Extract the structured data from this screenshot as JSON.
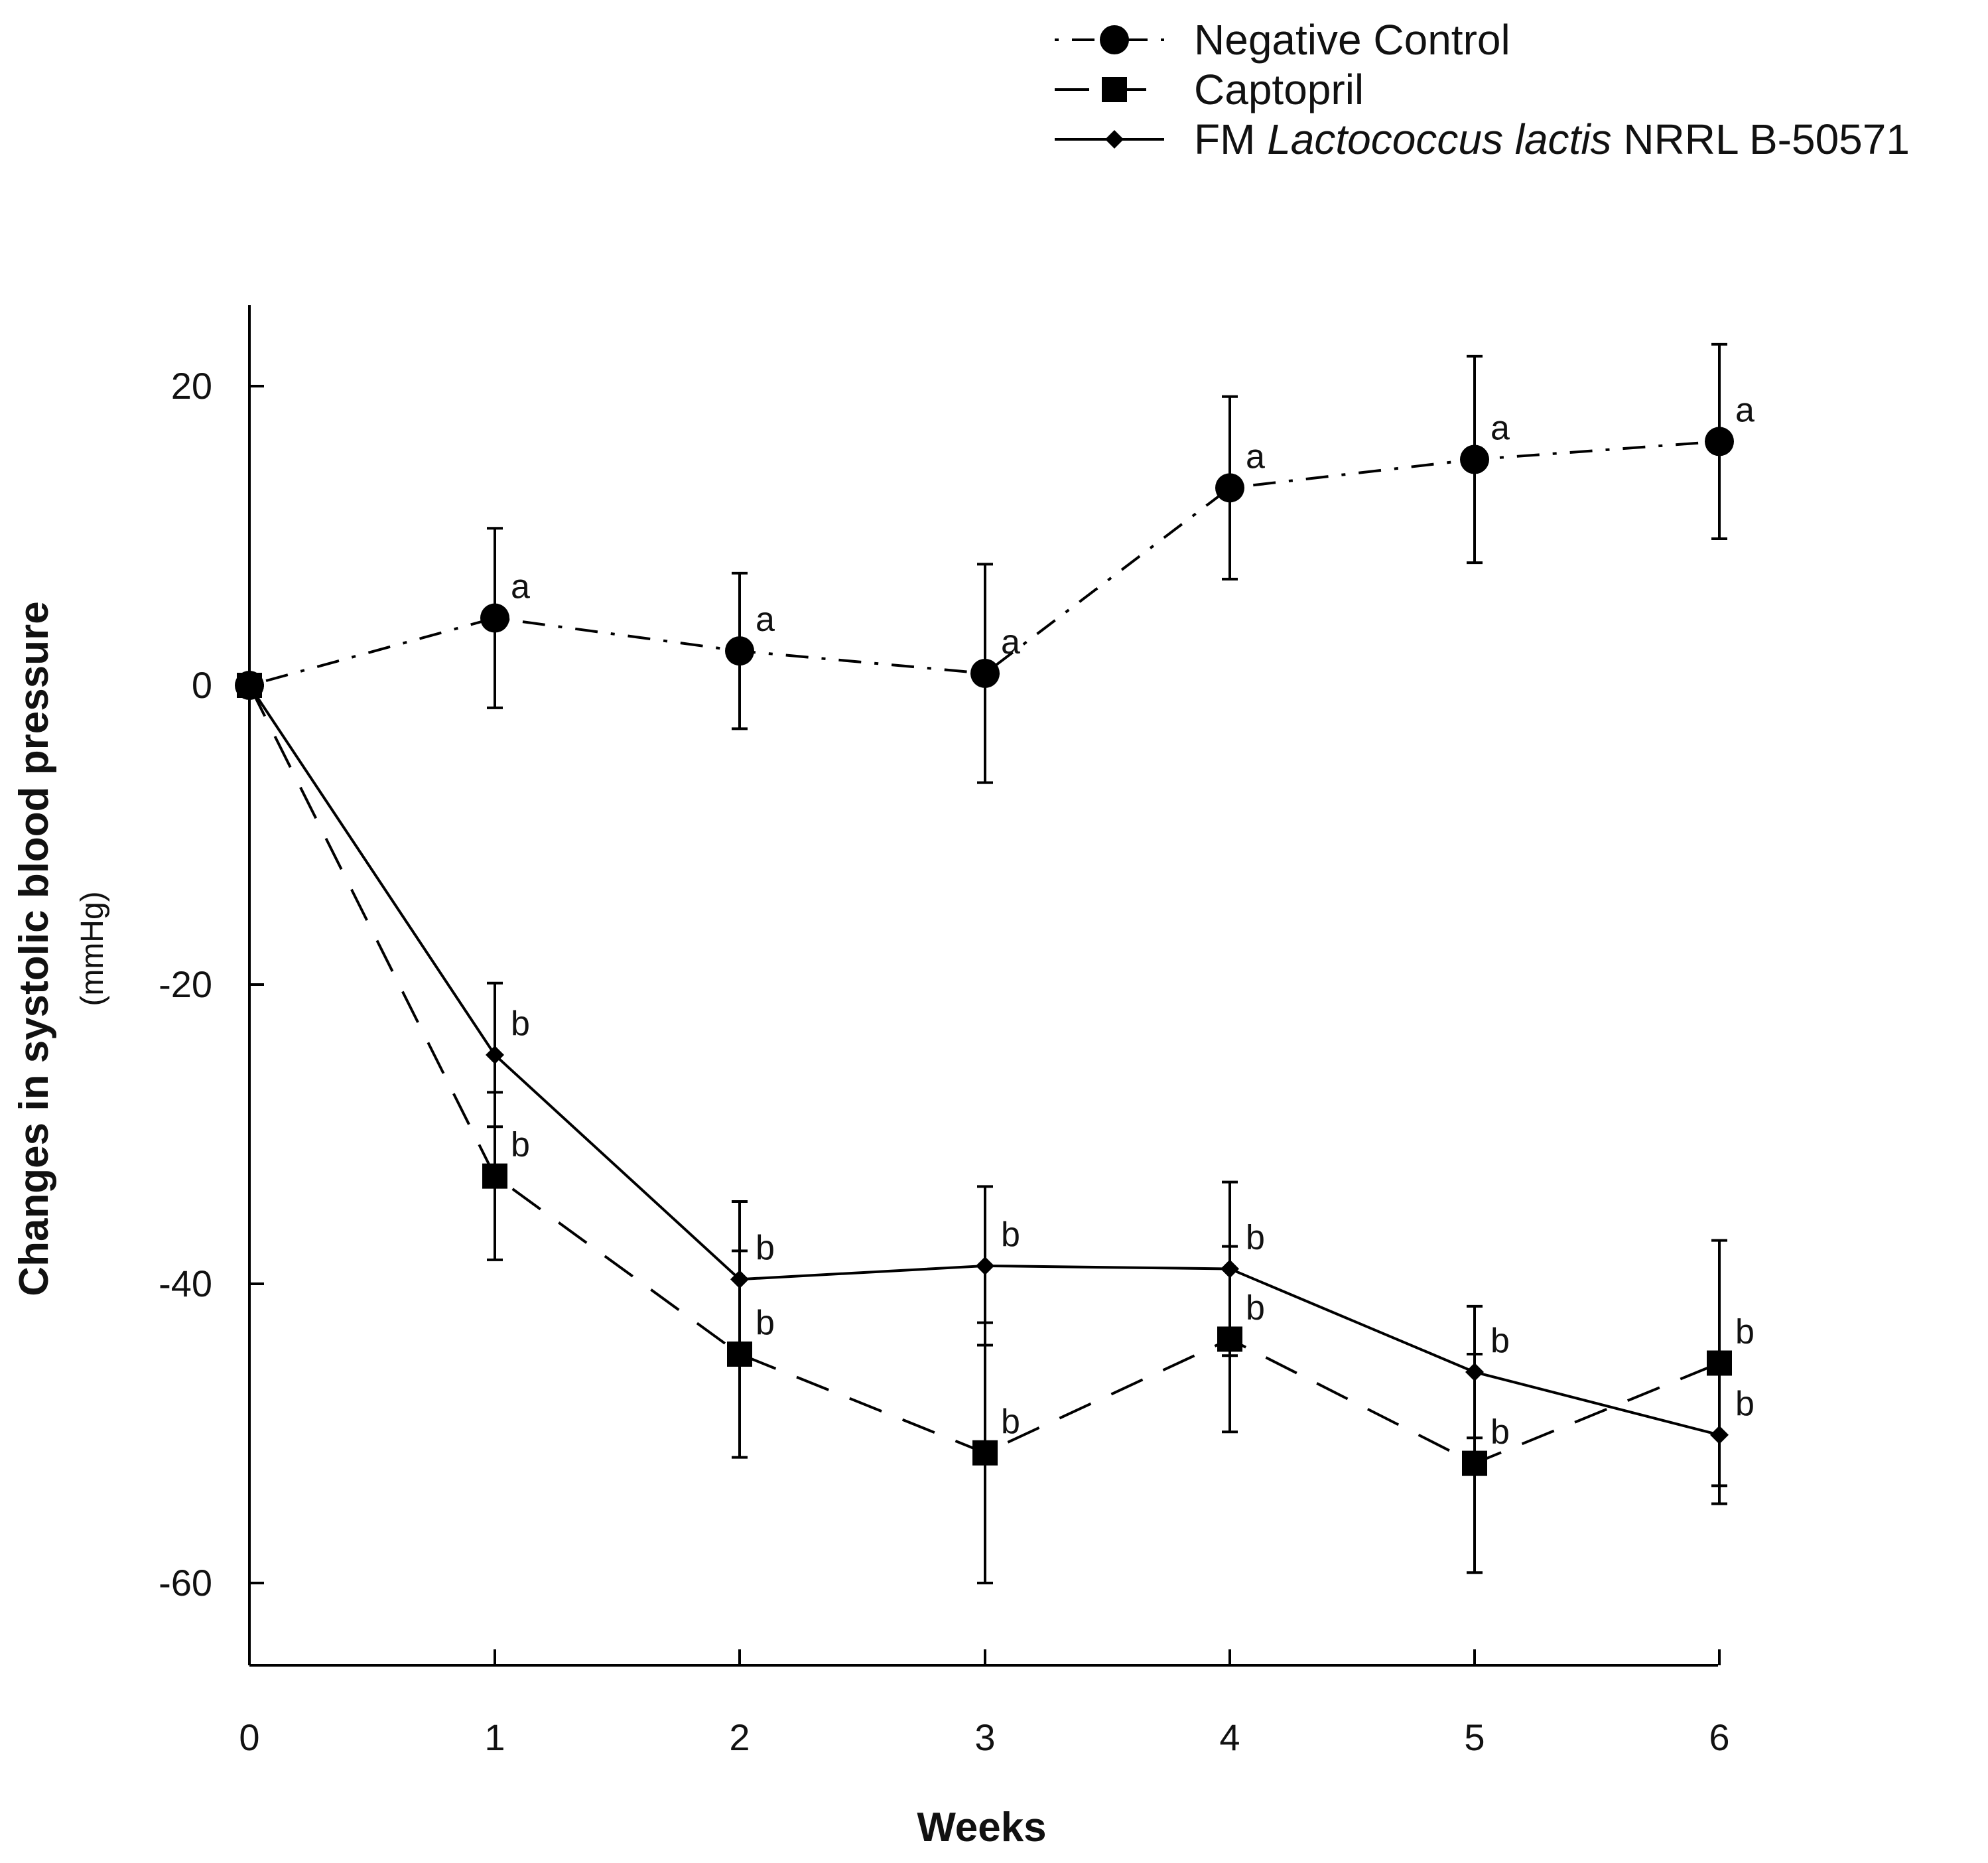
{
  "chart_data": {
    "type": "line",
    "xlabel": "Weeks",
    "ylabel": "Changes in systolic blood pressure",
    "ylabel_unit": "(mmHg)",
    "x": [
      0,
      1,
      2,
      3,
      4,
      5,
      6
    ],
    "xlim": [
      0,
      6
    ],
    "ylim": [
      -65,
      25
    ],
    "xticks": [
      0,
      1,
      2,
      3,
      4,
      5,
      6
    ],
    "yticks": [
      20,
      0,
      -20,
      -40,
      -60
    ],
    "grid": false,
    "legend_position": "top-right",
    "series": [
      {
        "name": "Negative Control",
        "legend_parts": [
          "Negative Control"
        ],
        "marker": "circle",
        "line_style": "dash-dot",
        "color": "#000000",
        "values": [
          0,
          4.5,
          2.3,
          0.8,
          13.2,
          15.1,
          16.3
        ],
        "errors": [
          null,
          6,
          5.2,
          7.3,
          6.1,
          6.9,
          6.5
        ],
        "significance": [
          null,
          "a",
          "a",
          "a",
          "a",
          "a",
          "a"
        ]
      },
      {
        "name": "Captopril",
        "legend_parts": [
          "Captopril"
        ],
        "marker": "square",
        "line_style": "long-dash",
        "color": "#000000",
        "values": [
          0,
          -32.8,
          -44.7,
          -51.3,
          -43.7,
          -52,
          -45.3
        ],
        "errors": [
          null,
          5.6,
          6.9,
          8.7,
          6.2,
          7.3,
          8.2
        ],
        "significance": [
          null,
          "b",
          "b",
          "b",
          "b",
          "b",
          "b"
        ]
      },
      {
        "name": "FM Lactococcus lactis NRRL B-50571",
        "legend_parts": [
          "FM ",
          "Lactococcus lactis",
          " NRRL B-50571"
        ],
        "marker": "diamond",
        "line_style": "solid",
        "color": "#000000",
        "values": [
          0,
          -24.7,
          -39.7,
          -38.8,
          -39,
          -45.9,
          -50.1
        ],
        "errors": [
          null,
          4.8,
          5.2,
          5.3,
          5.8,
          4.4,
          4.6
        ],
        "significance": [
          null,
          "b",
          "b",
          "b",
          "b",
          "b",
          "b"
        ]
      }
    ]
  }
}
